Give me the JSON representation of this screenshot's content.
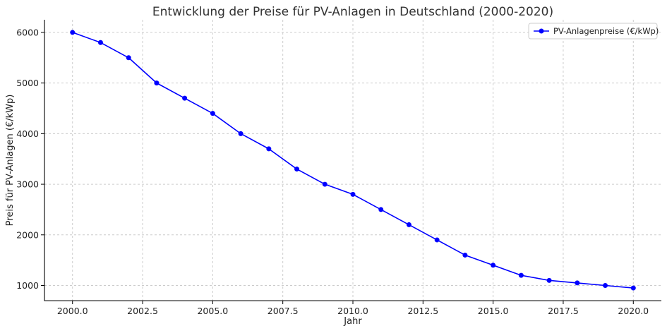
{
  "chart_data": {
    "type": "line",
    "title": "Entwicklung der Preise für PV-Anlagen in Deutschland (2000-2020)",
    "xlabel": "Jahr",
    "ylabel": "Preis für PV-Anlagen (€/kWp)",
    "xlim": [
      1999.0,
      2021.0
    ],
    "ylim": [
      700,
      6250
    ],
    "x_ticks": [
      2000.0,
      2002.5,
      2005.0,
      2007.5,
      2010.0,
      2012.5,
      2015.0,
      2017.5,
      2020.0
    ],
    "x_tick_labels": [
      "2000.0",
      "2002.5",
      "2005.0",
      "2007.5",
      "2010.0",
      "2012.5",
      "2015.0",
      "2017.5",
      "2020.0"
    ],
    "y_ticks": [
      1000,
      2000,
      3000,
      4000,
      5000,
      6000
    ],
    "y_tick_labels": [
      "1000",
      "2000",
      "3000",
      "4000",
      "5000",
      "6000"
    ],
    "grid": true,
    "legend_position": "top-right",
    "x": [
      2000,
      2001,
      2002,
      2003,
      2004,
      2005,
      2006,
      2007,
      2008,
      2009,
      2010,
      2011,
      2012,
      2013,
      2014,
      2015,
      2016,
      2017,
      2018,
      2019,
      2020
    ],
    "series": [
      {
        "name": "PV-Anlagenpreise (€/kWp)",
        "color": "#0000ff",
        "marker": "circle",
        "values": [
          6000,
          5800,
          5500,
          5000,
          4700,
          4400,
          4000,
          3700,
          3300,
          3000,
          2800,
          2500,
          2200,
          1900,
          1600,
          1400,
          1200,
          1100,
          1050,
          1000,
          950
        ]
      }
    ]
  }
}
